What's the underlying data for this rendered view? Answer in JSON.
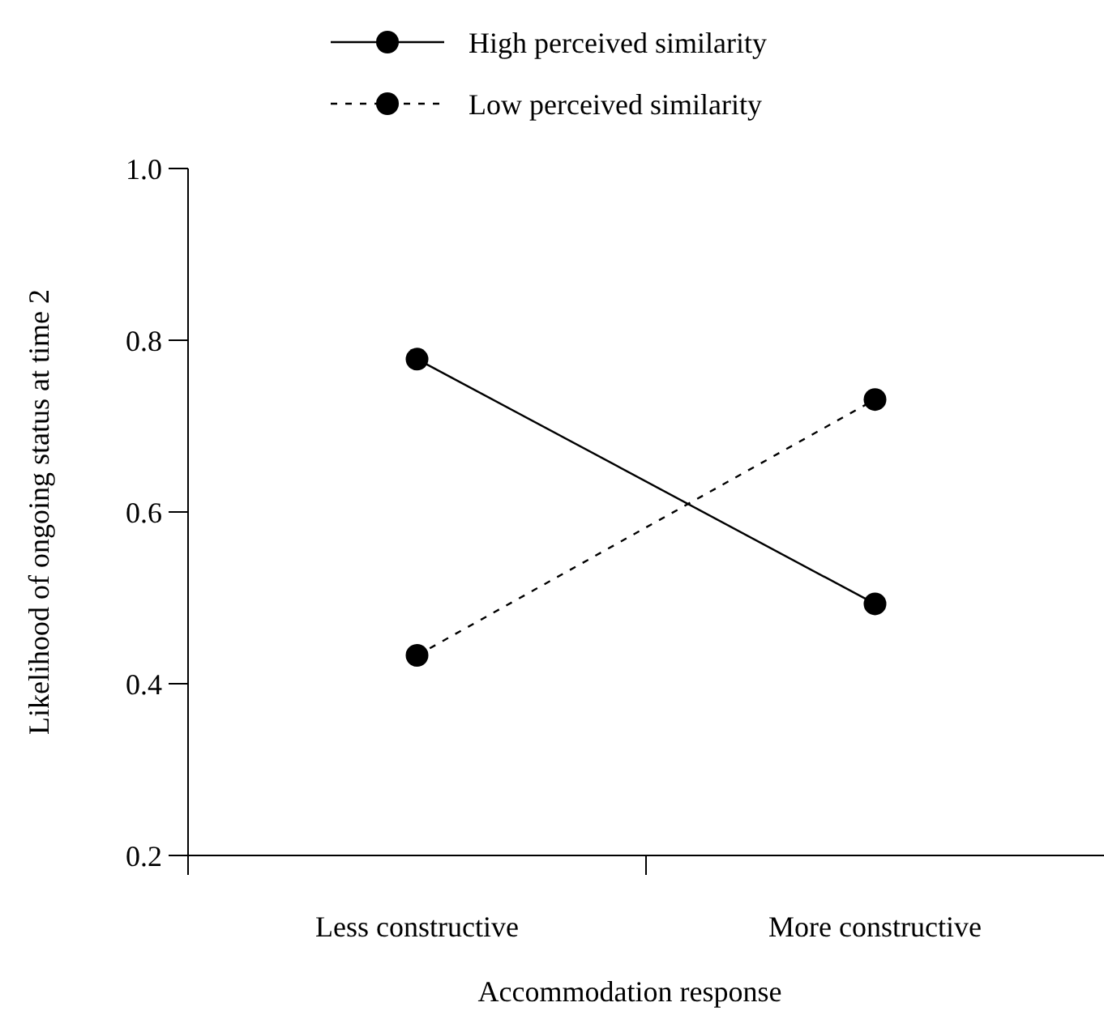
{
  "chart_data": {
    "type": "line",
    "xlabel": "Accommodation response",
    "ylabel": "Likelihood of ongoing status at time 2",
    "categories": [
      "Less constructive",
      "More constructive"
    ],
    "series": [
      {
        "name": "High perceived similarity",
        "color": "#000000",
        "line_style": "solid",
        "values": [
          0.778,
          0.493
        ]
      },
      {
        "name": "Low perceived similarity",
        "color": "#000000",
        "line_style": "dashed",
        "values": [
          0.433,
          0.731
        ]
      }
    ],
    "ylim": [
      0.2,
      1.0
    ],
    "yticks": [
      {
        "value": 0.2,
        "label": "0.2"
      },
      {
        "value": 0.4,
        "label": "0.4"
      },
      {
        "value": 0.6,
        "label": "0.6"
      },
      {
        "value": 0.8,
        "label": "0.8"
      },
      {
        "value": 1.0,
        "label": "1.0"
      }
    ],
    "marker": "circle",
    "legend": "top",
    "grid": false
  }
}
